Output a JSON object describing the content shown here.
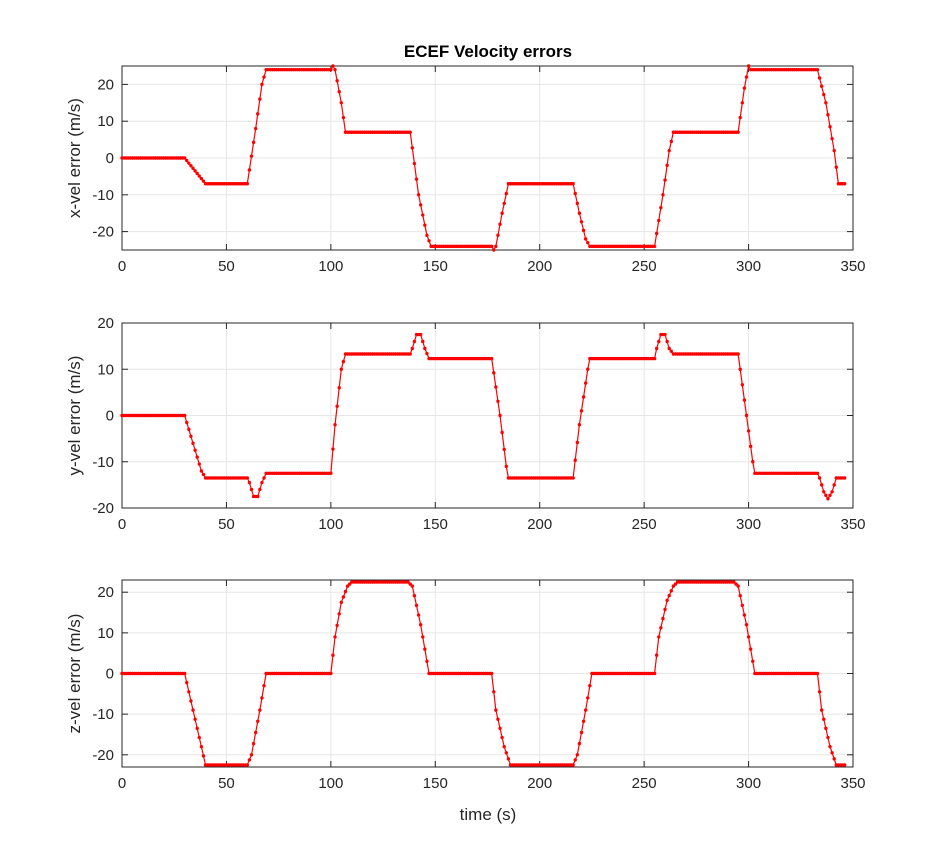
{
  "figure": {
    "title": "ECEF Velocity errors",
    "xlabel": "time (s)"
  },
  "colors": {
    "series": "#ff0000",
    "grid": "#e6e6e6",
    "axes": "#262626"
  },
  "chart_data": [
    {
      "type": "line",
      "title": "ECEF Velocity errors",
      "xlabel": "",
      "ylabel": "x-vel error (m/s)",
      "xlim": [
        0,
        350
      ],
      "ylim": [
        -25,
        25
      ],
      "xticks": [
        0,
        50,
        100,
        150,
        200,
        250,
        300,
        350
      ],
      "yticks": [
        -20,
        -10,
        0,
        10,
        20
      ],
      "grid": true,
      "marker": "dot",
      "x": [
        0,
        30,
        40,
        60,
        64,
        67,
        69,
        100,
        101,
        102,
        105,
        107,
        138,
        142,
        146,
        148,
        177,
        178,
        179,
        182,
        185,
        216,
        219,
        222,
        224,
        255,
        259,
        262,
        264,
        295,
        298,
        300,
        301,
        333,
        337,
        341,
        343,
        346
      ],
      "y": [
        0,
        0,
        -7,
        -7,
        8,
        20,
        24,
        24,
        25,
        24,
        15,
        7,
        7,
        -10,
        -21,
        -24,
        -24,
        -25,
        -24,
        -15,
        -7,
        -7,
        -15,
        -22,
        -24,
        -24,
        -10,
        2,
        7,
        7,
        19,
        25,
        24,
        24,
        15,
        2,
        -7,
        -7
      ],
      "series": [
        {
          "color": "#ff0000"
        }
      ]
    },
    {
      "type": "line",
      "title": "",
      "xlabel": "",
      "ylabel": "y-vel error (m/s)",
      "xlim": [
        0,
        350
      ],
      "ylim": [
        -20,
        20
      ],
      "xticks": [
        0,
        50,
        100,
        150,
        200,
        250,
        300,
        350
      ],
      "yticks": [
        -20,
        -10,
        0,
        10,
        20
      ],
      "grid": true,
      "marker": "dot",
      "x": [
        0,
        30,
        34,
        38,
        40,
        60,
        61,
        63,
        65,
        67,
        69,
        100,
        102,
        105,
        107,
        138,
        139,
        141,
        143,
        145,
        147,
        177,
        181,
        184,
        185,
        216,
        219,
        223,
        224,
        255,
        256,
        258,
        260,
        262,
        264,
        295,
        299,
        302,
        303,
        333,
        334,
        336,
        338,
        340,
        342,
        346
      ],
      "y": [
        0,
        0,
        -6,
        -12,
        -13.5,
        -13.5,
        -14.5,
        -17.5,
        -17.5,
        -14.5,
        -12.5,
        -12.5,
        -2,
        10,
        13.3,
        13.3,
        14.5,
        17.5,
        17.5,
        14.5,
        12.3,
        12.3,
        0,
        -11,
        -13.5,
        -13.5,
        -2,
        10,
        12.3,
        12.3,
        14.5,
        17.5,
        17.5,
        14.5,
        13.3,
        13.3,
        0,
        -10,
        -12.5,
        -12.5,
        -13.5,
        -16.5,
        -18,
        -16.5,
        -13.5,
        -13.5
      ],
      "series": [
        {
          "color": "#ff0000"
        }
      ]
    },
    {
      "type": "line",
      "title": "",
      "xlabel": "time (s)",
      "ylabel": "z-vel error (m/s)",
      "xlim": [
        0,
        350
      ],
      "ylim": [
        -23,
        23
      ],
      "xticks": [
        0,
        50,
        100,
        150,
        200,
        250,
        300,
        350
      ],
      "yticks": [
        -20,
        -10,
        0,
        10,
        20
      ],
      "grid": true,
      "marker": "dot",
      "x": [
        0,
        30,
        34,
        38,
        40,
        60,
        62,
        66,
        69,
        100,
        102,
        105,
        108,
        110,
        137,
        139,
        143,
        146,
        147,
        177,
        179,
        183,
        186,
        216,
        218,
        222,
        225,
        255,
        257,
        261,
        264,
        266,
        293,
        295,
        299,
        302,
        303,
        333,
        335,
        339,
        342,
        346
      ],
      "y": [
        0,
        0,
        -9,
        -18,
        -22.5,
        -22.5,
        -20,
        -9,
        0,
        0,
        9,
        17.5,
        21.5,
        22.5,
        22.5,
        21.5,
        12,
        3,
        0,
        0,
        -9,
        -18,
        -22.5,
        -22.5,
        -20,
        -9,
        0,
        0,
        9,
        18,
        21.5,
        22.5,
        22.5,
        21.5,
        12,
        3,
        0,
        0,
        -9,
        -18,
        -22.5,
        -22.5
      ],
      "series": [
        {
          "color": "#ff0000"
        }
      ]
    }
  ]
}
